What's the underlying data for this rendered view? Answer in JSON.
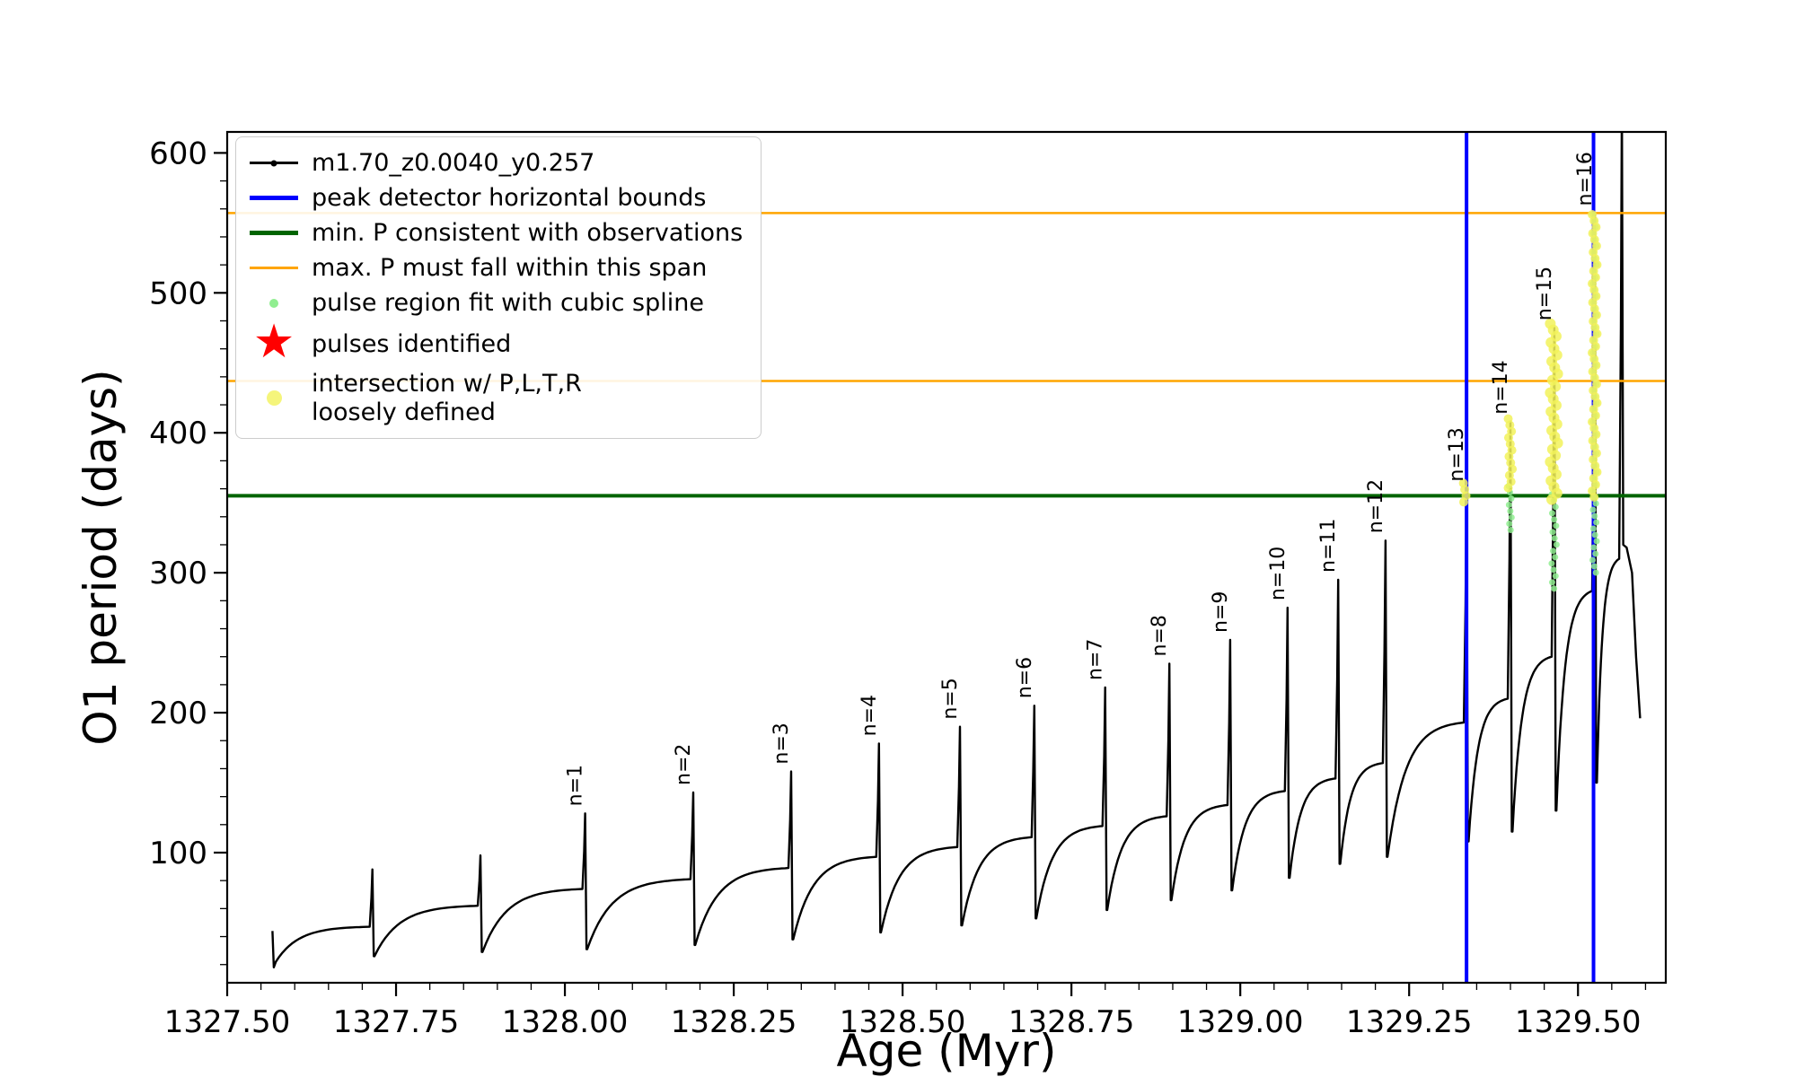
{
  "icons": {
    "star": "★"
  },
  "legend": {
    "items": [
      {
        "symbol": "line-dot",
        "label": "m1.70_z0.0040_y0.257"
      },
      {
        "symbol": "blue-line",
        "label": "peak detector horizontal bounds"
      },
      {
        "symbol": "green-line",
        "label": "min. P consistent with observations"
      },
      {
        "symbol": "orange-line",
        "label": "max. P must fall within this span"
      },
      {
        "symbol": "green-dot",
        "label": "pulse region fit with cubic spline"
      },
      {
        "symbol": "red-star",
        "label": "pulses identified"
      },
      {
        "symbol": "yellow-dot",
        "label": "intersection w/ P,L,T,R",
        "label2": "loosely defined"
      }
    ]
  },
  "chart_data": {
    "type": "line",
    "title": "",
    "xlabel": "Age (Myr)",
    "ylabel": "O1 period (days)",
    "xlim": [
      1327.5,
      1329.63
    ],
    "ylim": [
      7,
      615
    ],
    "x_ticks": [
      1327.5,
      1327.75,
      1328.0,
      1328.25,
      1328.5,
      1328.75,
      1329.0,
      1329.25,
      1329.5
    ],
    "x_tick_labels": [
      "1327.50",
      "1327.75",
      "1328.00",
      "1328.25",
      "1328.50",
      "1328.75",
      "1329.00",
      "1329.25",
      "1329.50"
    ],
    "x_minor": 0.05,
    "y_ticks": [
      100,
      200,
      300,
      400,
      500,
      600
    ],
    "y_tick_labels": [
      "100",
      "200",
      "300",
      "400",
      "500",
      "600"
    ],
    "y_minor": 20,
    "colors": {
      "series": "#000000",
      "peak_bounds": "#0000ff",
      "min_p": "#006400",
      "max_p": "#ffa500",
      "spline": "#90ee90",
      "pulses": "#ff0000",
      "intersection": "#f2f25a"
    },
    "hlines": [
      {
        "y": 557,
        "color": "max_p",
        "lw": 2.5,
        "name": "max-p-upper-line"
      },
      {
        "y": 437,
        "color": "max_p",
        "lw": 2.5,
        "name": "max-p-lower-line"
      },
      {
        "y": 355,
        "color": "min_p",
        "lw": 4,
        "name": "min-p-line"
      }
    ],
    "vlines": [
      {
        "x": 1329.335,
        "color": "peak_bounds",
        "lw": 4,
        "name": "peak-bound-left"
      },
      {
        "x": 1329.523,
        "color": "peak_bounds",
        "lw": 4,
        "name": "peak-bound-right"
      }
    ],
    "pulses": [
      {
        "n": 1,
        "age": 1328.03,
        "peak": 128
      },
      {
        "n": 2,
        "age": 1328.19,
        "peak": 143
      },
      {
        "n": 3,
        "age": 1328.335,
        "peak": 158
      },
      {
        "n": 4,
        "age": 1328.465,
        "peak": 178
      },
      {
        "n": 5,
        "age": 1328.585,
        "peak": 190
      },
      {
        "n": 6,
        "age": 1328.695,
        "peak": 205
      },
      {
        "n": 7,
        "age": 1328.8,
        "peak": 218
      },
      {
        "n": 8,
        "age": 1328.895,
        "peak": 235
      },
      {
        "n": 9,
        "age": 1328.985,
        "peak": 252
      },
      {
        "n": 10,
        "age": 1329.07,
        "peak": 275
      },
      {
        "n": 11,
        "age": 1329.145,
        "peak": 295
      },
      {
        "n": 12,
        "age": 1329.215,
        "peak": 323
      },
      {
        "n": 13,
        "age": 1329.335,
        "peak": 360
      },
      {
        "n": 14,
        "age": 1329.4,
        "peak": 408
      },
      {
        "n": 15,
        "age": 1329.465,
        "peak": 475
      },
      {
        "n": 16,
        "age": 1329.525,
        "peak": 557
      }
    ],
    "curve": {
      "lead_in": [
        [
          1327.567,
          44
        ],
        [
          1327.569,
          18
        ],
        [
          1327.572,
          22
        ]
      ],
      "cycles": [
        {
          "x0": 1327.572,
          "min": 22,
          "xs": 1327.715,
          "plateau": 47,
          "peak": 88,
          "drop": 26,
          "label": null
        },
        {
          "x0": 1327.718,
          "min": 26,
          "xs": 1327.875,
          "plateau": 62,
          "peak": 98,
          "drop": 29,
          "label": null
        },
        {
          "x0": 1327.878,
          "min": 29,
          "xs": 1328.03,
          "plateau": 74,
          "peak": 128,
          "drop": 31,
          "label": "n=1"
        },
        {
          "x0": 1328.033,
          "min": 31,
          "xs": 1328.19,
          "plateau": 81,
          "peak": 143,
          "drop": 34,
          "label": "n=2"
        },
        {
          "x0": 1328.193,
          "min": 34,
          "xs": 1328.335,
          "plateau": 89,
          "peak": 158,
          "drop": 38,
          "label": "n=3"
        },
        {
          "x0": 1328.338,
          "min": 38,
          "xs": 1328.465,
          "plateau": 97,
          "peak": 178,
          "drop": 43,
          "label": "n=4"
        },
        {
          "x0": 1328.468,
          "min": 43,
          "xs": 1328.585,
          "plateau": 104,
          "peak": 190,
          "drop": 48,
          "label": "n=5"
        },
        {
          "x0": 1328.588,
          "min": 48,
          "xs": 1328.695,
          "plateau": 111,
          "peak": 205,
          "drop": 53,
          "label": "n=6"
        },
        {
          "x0": 1328.698,
          "min": 53,
          "xs": 1328.8,
          "plateau": 119,
          "peak": 218,
          "drop": 59,
          "label": "n=7"
        },
        {
          "x0": 1328.803,
          "min": 59,
          "xs": 1328.895,
          "plateau": 126,
          "peak": 235,
          "drop": 66,
          "label": "n=8"
        },
        {
          "x0": 1328.898,
          "min": 66,
          "xs": 1328.985,
          "plateau": 134,
          "peak": 252,
          "drop": 73,
          "label": "n=9"
        },
        {
          "x0": 1328.988,
          "min": 73,
          "xs": 1329.07,
          "plateau": 144,
          "peak": 275,
          "drop": 82,
          "label": "n=10"
        },
        {
          "x0": 1329.073,
          "min": 82,
          "xs": 1329.145,
          "plateau": 153,
          "peak": 295,
          "drop": 92,
          "label": "n=11"
        },
        {
          "x0": 1329.148,
          "min": 92,
          "xs": 1329.215,
          "plateau": 164,
          "peak": 323,
          "drop": 97,
          "label": "n=12"
        },
        {
          "x0": 1329.218,
          "min": 97,
          "xs": 1329.335,
          "plateau": 193,
          "peak": 360,
          "drop": 108,
          "label": "n=13"
        },
        {
          "x0": 1329.338,
          "min": 108,
          "xs": 1329.4,
          "plateau": 210,
          "peak": 408,
          "drop": 115,
          "label": "n=14"
        },
        {
          "x0": 1329.403,
          "min": 115,
          "xs": 1329.465,
          "plateau": 240,
          "peak": 475,
          "drop": 130,
          "label": "n=15"
        },
        {
          "x0": 1329.468,
          "min": 130,
          "xs": 1329.525,
          "plateau": 287,
          "peak": 557,
          "drop": 150,
          "label": "n=16"
        },
        {
          "x0": 1329.528,
          "min": 150,
          "xs": 1329.565,
          "plateau": 310,
          "peak": 640,
          "drop": 320,
          "label": null
        }
      ],
      "tail": [
        [
          1329.572,
          318
        ],
        [
          1329.58,
          300
        ],
        [
          1329.586,
          240
        ],
        [
          1329.592,
          196
        ]
      ]
    },
    "marker_columns": [
      {
        "x": 1329.333,
        "color": "intersection",
        "y0": 349,
        "y1": 364,
        "r": 5,
        "spread": 4
      },
      {
        "x": 1329.4,
        "color": "spline",
        "y0": 330,
        "y1": 362,
        "r": 3.5,
        "spread": 4
      },
      {
        "x": 1329.4,
        "color": "intersection",
        "y0": 358,
        "y1": 410,
        "r": 5,
        "spread": 5
      },
      {
        "x": 1329.465,
        "color": "spline",
        "y0": 285,
        "y1": 356,
        "r": 3.5,
        "spread": 6
      },
      {
        "x": 1329.465,
        "color": "intersection",
        "y0": 352,
        "y1": 478,
        "r": 6,
        "spread": 9
      },
      {
        "x": 1329.525,
        "color": "spline",
        "y0": 298,
        "y1": 556,
        "r": 3.5,
        "spread": 5
      },
      {
        "x": 1329.525,
        "color": "intersection",
        "y0": 352,
        "y1": 556,
        "r": 5,
        "spread": 6
      }
    ]
  }
}
